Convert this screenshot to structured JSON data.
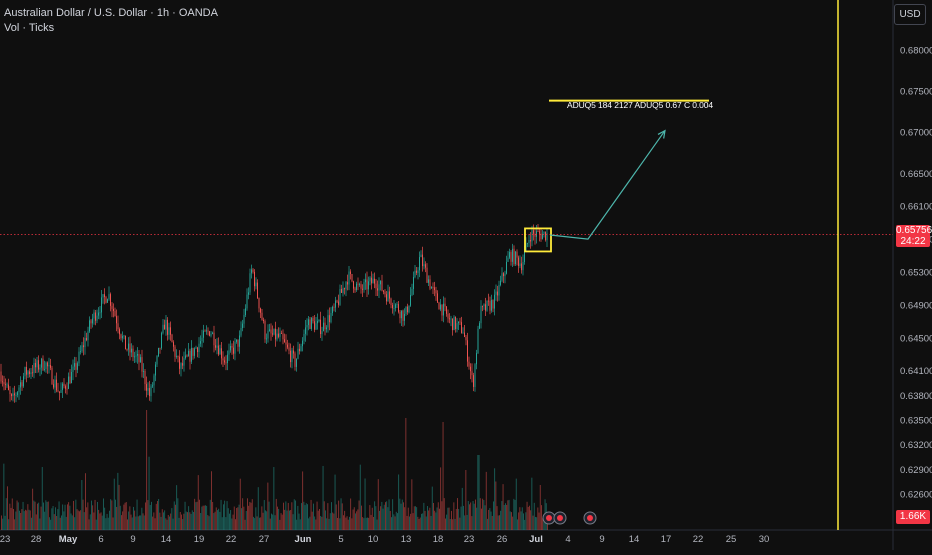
{
  "header": {
    "symbol_line": "Australian Dollar / U.S. Dollar · 1h · OANDA",
    "indicator_line": "Vol · Ticks"
  },
  "currency_button": "USD",
  "price_axis": {
    "ticks": [
      "0.68000",
      "0.67500",
      "0.67000",
      "0.66500",
      "0.66100",
      "0.65700",
      "0.65300",
      "0.64900",
      "0.64500",
      "0.64100",
      "0.63800",
      "0.63500",
      "0.63200",
      "0.62900",
      "0.62600"
    ]
  },
  "current_price": {
    "value": "0.65756",
    "countdown": "24:22"
  },
  "volume_label": "1.66K",
  "time_axis": {
    "labels": [
      "23",
      "28",
      "May",
      "6",
      "9",
      "14",
      "19",
      "22",
      "27",
      "Jun",
      "5",
      "10",
      "13",
      "18",
      "23",
      "26",
      "Jul",
      "4",
      "9",
      "14",
      "17",
      "22",
      "25",
      "30"
    ]
  },
  "annotation": {
    "text": "ADUQ5 184 2127 ADUQ5 0.67 C   0.004"
  },
  "colors": {
    "background": "#0f0f0f",
    "bull": "#26a69a",
    "bear": "#ef5350",
    "highlight": "#ffeb3b",
    "arrow": "#4db6ac",
    "price_line": "#f23645"
  },
  "chart_data": {
    "type": "candlestick",
    "symbol": "AUDUSD",
    "interval": "1h",
    "ylim": [
      0.6245,
      0.684
    ],
    "series_path": [
      {
        "x": 0,
        "y": 0.6409
      },
      {
        "x": 12,
        "y": 0.6372
      },
      {
        "x": 25,
        "y": 0.6407
      },
      {
        "x": 45,
        "y": 0.642
      },
      {
        "x": 60,
        "y": 0.6382
      },
      {
        "x": 75,
        "y": 0.6412
      },
      {
        "x": 92,
        "y": 0.6472
      },
      {
        "x": 108,
        "y": 0.6505
      },
      {
        "x": 125,
        "y": 0.644
      },
      {
        "x": 140,
        "y": 0.642
      },
      {
        "x": 150,
        "y": 0.6378
      },
      {
        "x": 165,
        "y": 0.647
      },
      {
        "x": 180,
        "y": 0.6412
      },
      {
        "x": 200,
        "y": 0.6445
      },
      {
        "x": 210,
        "y": 0.646
      },
      {
        "x": 225,
        "y": 0.6422
      },
      {
        "x": 240,
        "y": 0.6448
      },
      {
        "x": 252,
        "y": 0.6535
      },
      {
        "x": 265,
        "y": 0.6455
      },
      {
        "x": 280,
        "y": 0.645
      },
      {
        "x": 295,
        "y": 0.642
      },
      {
        "x": 308,
        "y": 0.647
      },
      {
        "x": 322,
        "y": 0.6462
      },
      {
        "x": 335,
        "y": 0.6485
      },
      {
        "x": 348,
        "y": 0.6525
      },
      {
        "x": 360,
        "y": 0.6508
      },
      {
        "x": 375,
        "y": 0.652
      },
      {
        "x": 390,
        "y": 0.6498
      },
      {
        "x": 405,
        "y": 0.6475
      },
      {
        "x": 420,
        "y": 0.6548
      },
      {
        "x": 435,
        "y": 0.65
      },
      {
        "x": 450,
        "y": 0.647
      },
      {
        "x": 463,
        "y": 0.646
      },
      {
        "x": 473,
        "y": 0.6392
      },
      {
        "x": 480,
        "y": 0.648
      },
      {
        "x": 495,
        "y": 0.6495
      },
      {
        "x": 510,
        "y": 0.6552
      },
      {
        "x": 522,
        "y": 0.654
      },
      {
        "x": 530,
        "y": 0.6576
      },
      {
        "x": 545,
        "y": 0.6576
      }
    ],
    "projection": [
      {
        "x": 550,
        "y": 0.6575
      },
      {
        "x": 588,
        "y": 0.657
      },
      {
        "x": 665,
        "y": 0.6702
      }
    ],
    "highlight_box": {
      "x0": 525,
      "x1": 551,
      "y0": 0.6583,
      "y1": 0.6555
    },
    "target_line_y": 0.67385,
    "current_price": 0.65756,
    "vertical_line_x": 838,
    "volume_max": "1.66K"
  }
}
